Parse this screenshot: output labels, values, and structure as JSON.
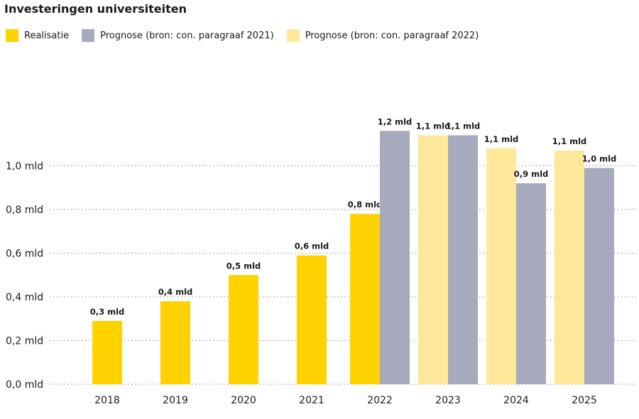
{
  "colors": {
    "realisatie": "#ffd200",
    "prognose_2021": "#a6aabc",
    "prognose_2022": "#ffe899",
    "grid": "#9a9a9a"
  },
  "chart_data": {
    "type": "bar",
    "title": "Investeringen universiteiten",
    "categories": [
      "2018",
      "2019",
      "2020",
      "2021",
      "2022",
      "2023",
      "2024",
      "2025"
    ],
    "ylim": [
      0,
      1.2
    ],
    "yticks": [
      0,
      0.2,
      0.4,
      0.6,
      0.8,
      1.0
    ],
    "ytick_labels": [
      "0,0 mld",
      "0,2 mld",
      "0,4 mld",
      "0,6 mld",
      "0,8 mld",
      "1,0 mld"
    ],
    "grid": true,
    "legend_position": "top-left",
    "series": [
      {
        "name": "Realisatie",
        "values": [
          0.29,
          0.38,
          0.5,
          0.59,
          0.78,
          null,
          null,
          null
        ],
        "labels": [
          "0,3 mld",
          "0,4 mld",
          "0,5 mld",
          "0,6 mld",
          "0,8 mld",
          null,
          null,
          null
        ]
      },
      {
        "name": "Prognose (bron: con. paragraaf 2022)",
        "values": [
          null,
          null,
          null,
          null,
          null,
          1.14,
          1.08,
          1.07
        ],
        "labels": [
          null,
          null,
          null,
          null,
          null,
          "1,1 mld",
          "1,1 mld",
          "1,1 mld"
        ]
      },
      {
        "name": "Prognose (bron: con. paragraaf 2021)",
        "values": [
          null,
          null,
          null,
          null,
          1.16,
          1.14,
          0.92,
          0.99
        ],
        "labels": [
          null,
          null,
          null,
          null,
          "1,2 mld",
          "1,1 mld",
          "0,9 mld",
          "1,0 mld"
        ]
      }
    ]
  }
}
